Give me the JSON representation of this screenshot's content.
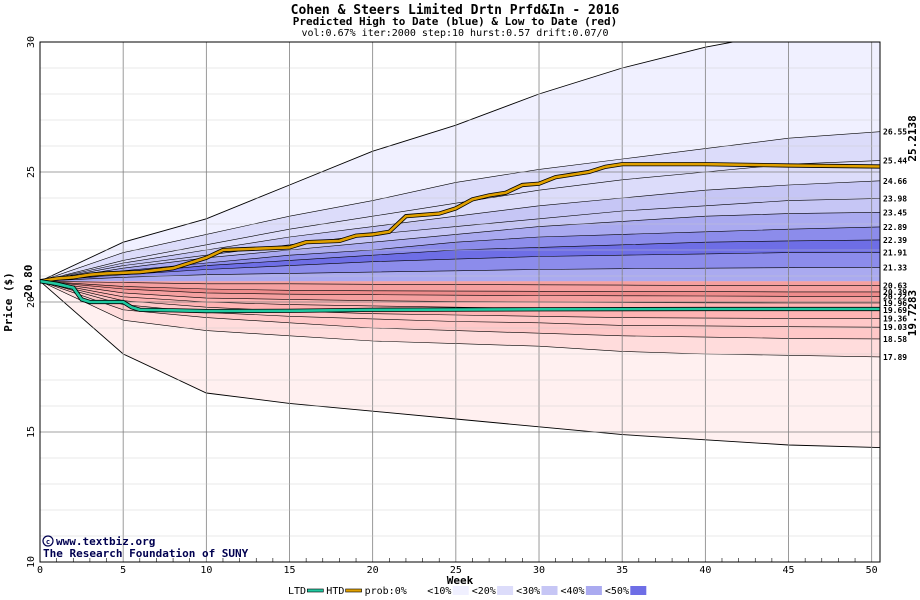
{
  "chart_data": {
    "type": "area",
    "title": "Cohen & Steers Limited Drtn Prfd&In - 2016",
    "subtitle": "Predicted High to Date (blue) &  Low to Date (red)",
    "params": "vol:0.67% iter:2000 step:10 hurst:0.57 drift:0.07/0",
    "xlabel": "Week",
    "ylabel": "Price ($)",
    "xlim": [
      0,
      50.5
    ],
    "ylim": [
      10,
      30
    ],
    "xticks": [
      0,
      5,
      10,
      15,
      20,
      25,
      30,
      35,
      40,
      45,
      50
    ],
    "yticks": [
      10,
      15,
      20,
      25,
      30
    ],
    "start_label": "20.80",
    "start_value": 20.8,
    "high_last_label": "25.2138",
    "low_last_label": "19.7283",
    "credit_url": "www.textbiz.org",
    "credit_org": "The Research Foundation of SUNY",
    "colors": {
      "blue_0": "#f0f0ff",
      "blue_10": "#dcdcfa",
      "blue_20": "#c6c6f5",
      "blue_30": "#aaaaf0",
      "blue_40": "#8c8ceb",
      "blue_50": "#6e6ee6",
      "red_0": "#fff0f0",
      "red_10": "#ffdcdc",
      "red_20": "#ffc8c8",
      "red_30": "#ffb4b4",
      "red_40": "#f5a0a0",
      "red_50": "#ee8c8c",
      "htd": "#e0a000",
      "ltd": "#20c8a0"
    },
    "legend": [
      {
        "label": "LTD",
        "type": "swatch-line",
        "color": "#20c8a0"
      },
      {
        "label": "HTD",
        "type": "swatch-line",
        "color": "#e0a000"
      },
      {
        "label": "prob:0%",
        "type": "swatch",
        "color": "#ffffff"
      },
      {
        "label": "<10%",
        "type": "swatch",
        "color": "#f0f0ff"
      },
      {
        "label": "<20%",
        "type": "swatch",
        "color": "#dcdcfa"
      },
      {
        "label": "<30%",
        "type": "swatch",
        "color": "#c6c6f5"
      },
      {
        "label": "<40%",
        "type": "swatch",
        "color": "#aaaaf0"
      },
      {
        "label": "<50%",
        "type": "swatch",
        "color": "#6e6ee6"
      }
    ],
    "high_bands": [
      {
        "label": "",
        "values": [
          20.8,
          22.3,
          23.2,
          24.5,
          25.8,
          26.8,
          28.0,
          29.0,
          29.8,
          30.4,
          30.8
        ]
      },
      {
        "label": "26.55",
        "values": [
          20.8,
          21.9,
          22.6,
          23.3,
          23.9,
          24.6,
          25.1,
          25.5,
          25.9,
          26.3,
          26.55
        ]
      },
      {
        "label": "25.44",
        "values": [
          20.8,
          21.6,
          22.2,
          22.8,
          23.3,
          23.8,
          24.3,
          24.7,
          25.0,
          25.3,
          25.44
        ]
      },
      {
        "label": "24.66",
        "values": [
          20.8,
          21.5,
          22.0,
          22.5,
          22.9,
          23.3,
          23.7,
          24.0,
          24.3,
          24.5,
          24.66
        ]
      },
      {
        "label": "23.98",
        "values": [
          20.8,
          21.4,
          21.8,
          22.2,
          22.6,
          22.9,
          23.2,
          23.5,
          23.7,
          23.9,
          23.98
        ]
      },
      {
        "label": "23.45",
        "values": [
          20.8,
          21.3,
          21.7,
          22.0,
          22.3,
          22.6,
          22.9,
          23.1,
          23.3,
          23.4,
          23.45
        ]
      },
      {
        "label": "22.89",
        "values": [
          20.8,
          21.2,
          21.5,
          21.8,
          22.0,
          22.3,
          22.5,
          22.6,
          22.7,
          22.8,
          22.89
        ]
      },
      {
        "label": "22.39",
        "values": [
          20.8,
          21.1,
          21.4,
          21.6,
          21.8,
          22.0,
          22.1,
          22.2,
          22.3,
          22.35,
          22.39
        ]
      },
      {
        "label": "21.91",
        "values": [
          20.8,
          21.05,
          21.25,
          21.4,
          21.55,
          21.65,
          21.75,
          21.8,
          21.85,
          21.9,
          21.91
        ]
      },
      {
        "label": "21.33",
        "values": [
          20.8,
          20.95,
          21.05,
          21.1,
          21.15,
          21.2,
          21.25,
          21.28,
          21.3,
          21.32,
          21.33
        ]
      },
      {
        "label": "20.63",
        "values": [
          20.8,
          20.75,
          20.7,
          20.7,
          20.68,
          20.67,
          20.66,
          20.65,
          20.64,
          20.63,
          20.63
        ]
      }
    ],
    "low_bands": [
      {
        "label": "",
        "values": [
          20.8,
          18.0,
          16.5,
          16.1,
          15.8,
          15.5,
          15.2,
          14.9,
          14.7,
          14.5,
          14.4
        ]
      },
      {
        "label": "17.89",
        "values": [
          20.8,
          19.3,
          18.9,
          18.7,
          18.5,
          18.4,
          18.3,
          18.1,
          18.0,
          17.95,
          17.89
        ]
      },
      {
        "label": "18.58",
        "values": [
          20.8,
          19.7,
          19.4,
          19.2,
          19.0,
          18.9,
          18.8,
          18.7,
          18.65,
          18.6,
          18.58
        ]
      },
      {
        "label": "19.03",
        "values": [
          20.8,
          19.9,
          19.6,
          19.45,
          19.35,
          19.25,
          19.2,
          19.1,
          19.08,
          19.05,
          19.03
        ]
      },
      {
        "label": "19.36",
        "values": [
          20.8,
          20.05,
          19.8,
          19.65,
          19.55,
          19.5,
          19.45,
          19.4,
          19.38,
          19.37,
          19.36
        ]
      },
      {
        "label": "19.69",
        "values": [
          20.8,
          20.2,
          20.0,
          19.9,
          19.85,
          19.8,
          19.75,
          19.72,
          19.7,
          19.69,
          19.69
        ]
      },
      {
        "label": "19.96",
        "values": [
          20.8,
          20.35,
          20.15,
          20.1,
          20.05,
          20.02,
          20.0,
          19.98,
          19.97,
          19.96,
          19.96
        ]
      },
      {
        "label": "20.22",
        "values": [
          20.8,
          20.5,
          20.35,
          20.3,
          20.28,
          20.26,
          20.25,
          20.24,
          20.23,
          20.22,
          20.22
        ]
      },
      {
        "label": "20.39",
        "values": [
          20.8,
          20.6,
          20.5,
          20.45,
          20.43,
          20.42,
          20.41,
          20.4,
          20.4,
          20.39,
          20.39
        ]
      }
    ],
    "htd_path": [
      [
        0,
        20.8
      ],
      [
        0.5,
        20.85
      ],
      [
        1,
        20.9
      ],
      [
        2,
        20.95
      ],
      [
        3,
        21.05
      ],
      [
        4,
        21.1
      ],
      [
        6,
        21.15
      ],
      [
        8,
        21.3
      ],
      [
        9,
        21.5
      ],
      [
        10,
        21.7
      ],
      [
        11,
        22.0
      ],
      [
        13,
        22.05
      ],
      [
        15,
        22.1
      ],
      [
        16,
        22.3
      ],
      [
        18,
        22.35
      ],
      [
        19,
        22.55
      ],
      [
        20,
        22.6
      ],
      [
        21,
        22.7
      ],
      [
        22,
        23.3
      ],
      [
        24,
        23.4
      ],
      [
        25,
        23.6
      ],
      [
        26,
        23.95
      ],
      [
        27,
        24.1
      ],
      [
        28,
        24.2
      ],
      [
        29,
        24.5
      ],
      [
        30,
        24.55
      ],
      [
        31,
        24.8
      ],
      [
        32,
        24.9
      ],
      [
        33,
        25.0
      ],
      [
        34,
        25.2
      ],
      [
        35,
        25.3
      ],
      [
        40,
        25.3
      ],
      [
        45,
        25.25
      ],
      [
        50.5,
        25.21
      ]
    ],
    "ltd_path": [
      [
        0,
        20.8
      ],
      [
        0.5,
        20.75
      ],
      [
        1,
        20.7
      ],
      [
        2,
        20.55
      ],
      [
        2.5,
        20.1
      ],
      [
        3,
        20.0
      ],
      [
        5,
        20.0
      ],
      [
        5.5,
        19.8
      ],
      [
        6,
        19.7
      ],
      [
        8,
        19.68
      ],
      [
        10,
        19.65
      ],
      [
        15,
        19.66
      ],
      [
        20,
        19.7
      ],
      [
        30,
        19.72
      ],
      [
        40,
        19.73
      ],
      [
        50.5,
        19.73
      ]
    ]
  }
}
